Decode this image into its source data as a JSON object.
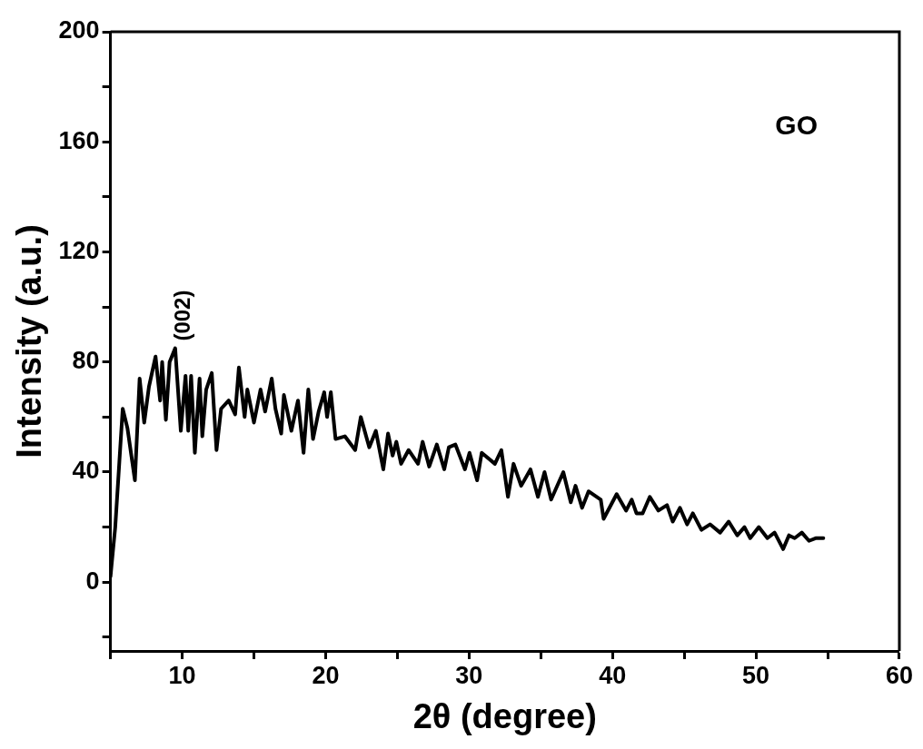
{
  "chart_data": {
    "type": "line",
    "xlabel": "2θ (degree)",
    "ylabel": "Intensity (a.u.)",
    "xlim": [
      5,
      60
    ],
    "xticks": [
      {
        "value": 5,
        "label": null
      },
      10,
      {
        "value": 15,
        "label": null
      },
      20,
      {
        "value": 25,
        "label": null
      },
      30,
      {
        "value": 35,
        "label": null
      },
      40,
      {
        "value": 45,
        "label": null
      },
      50,
      {
        "value": 55,
        "label": null
      },
      60
    ],
    "ylim": [
      -25,
      200
    ],
    "yticks": [
      {
        "value": -20,
        "label": null
      },
      0,
      {
        "value": 20,
        "label": null
      },
      40,
      {
        "value": 60,
        "label": null
      },
      80,
      {
        "value": 100,
        "label": null
      },
      120,
      {
        "value": 140,
        "label": null
      },
      160,
      {
        "value": 180,
        "label": null
      },
      200
    ],
    "annotations": [
      {
        "text": "(002)",
        "x": 9.5,
        "y": 85
      },
      "GO"
    ],
    "series": [
      {
        "color": "#000000",
        "x": [
          5,
          5.07,
          5.33,
          5.85,
          6.18,
          6.7,
          7.03,
          7.35,
          7.68,
          8.14,
          8.46,
          8.6,
          8.86,
          9.12,
          9.51,
          9.9,
          10.23,
          10.42,
          10.62,
          10.88,
          11.21,
          11.4,
          11.67,
          12.06,
          12.39,
          12.71,
          13.24,
          13.69,
          13.95,
          14.35,
          14.54,
          15.0,
          15.46,
          15.78,
          16.24,
          16.5,
          16.9,
          17.09,
          17.61,
          18.07,
          18.46,
          18.79,
          19.12,
          19.51,
          19.9,
          20.1,
          20.36,
          20.69,
          21.34,
          22.06,
          22.45,
          23.04,
          23.5,
          24.02,
          24.35,
          24.67,
          24.93,
          25.26,
          25.78,
          26.44,
          26.76,
          27.22,
          27.75,
          28.27,
          28.59,
          29.05,
          29.71,
          30.03,
          30.56,
          30.88,
          31.8,
          32.25,
          32.71,
          33.1,
          33.63,
          34.28,
          34.8,
          35.26,
          35.72,
          36.57,
          37.09,
          37.42,
          37.88,
          38.33,
          39.18,
          39.38,
          40.29,
          40.95,
          41.34,
          41.67,
          42.1,
          42.6,
          43.2,
          43.8,
          44.2,
          44.7,
          45.2,
          45.6,
          46.2,
          46.8,
          47.5,
          48.1,
          48.7,
          49.2,
          49.6,
          50.2,
          50.8,
          51.3,
          51.9,
          52.3,
          52.7,
          53.2,
          53.7,
          54.2,
          54.7
        ],
        "values": [
          2,
          6,
          20,
          63,
          56,
          37,
          74,
          58,
          71,
          82,
          66,
          80,
          59,
          80,
          85,
          55,
          75,
          55,
          75,
          47,
          74,
          53,
          70,
          76,
          48,
          63,
          66,
          61,
          78,
          60,
          70,
          58,
          70,
          62,
          74,
          63,
          54,
          68,
          55,
          66,
          47,
          70,
          52,
          62,
          69,
          60,
          69,
          52,
          53,
          48,
          60,
          49,
          55,
          41,
          54,
          46,
          51,
          43,
          48,
          43,
          51,
          42,
          50,
          41,
          49,
          50,
          41,
          47,
          37,
          47,
          43,
          48,
          31,
          43,
          35,
          41,
          31,
          40,
          30,
          40,
          29,
          35,
          27,
          33,
          30,
          23,
          32,
          26,
          30,
          25,
          25,
          31,
          26,
          28,
          22,
          27,
          21,
          25,
          19,
          21,
          18,
          22,
          17,
          20,
          16,
          20,
          16,
          18,
          12,
          17,
          16,
          18,
          15,
          16,
          16
        ]
      }
    ]
  }
}
